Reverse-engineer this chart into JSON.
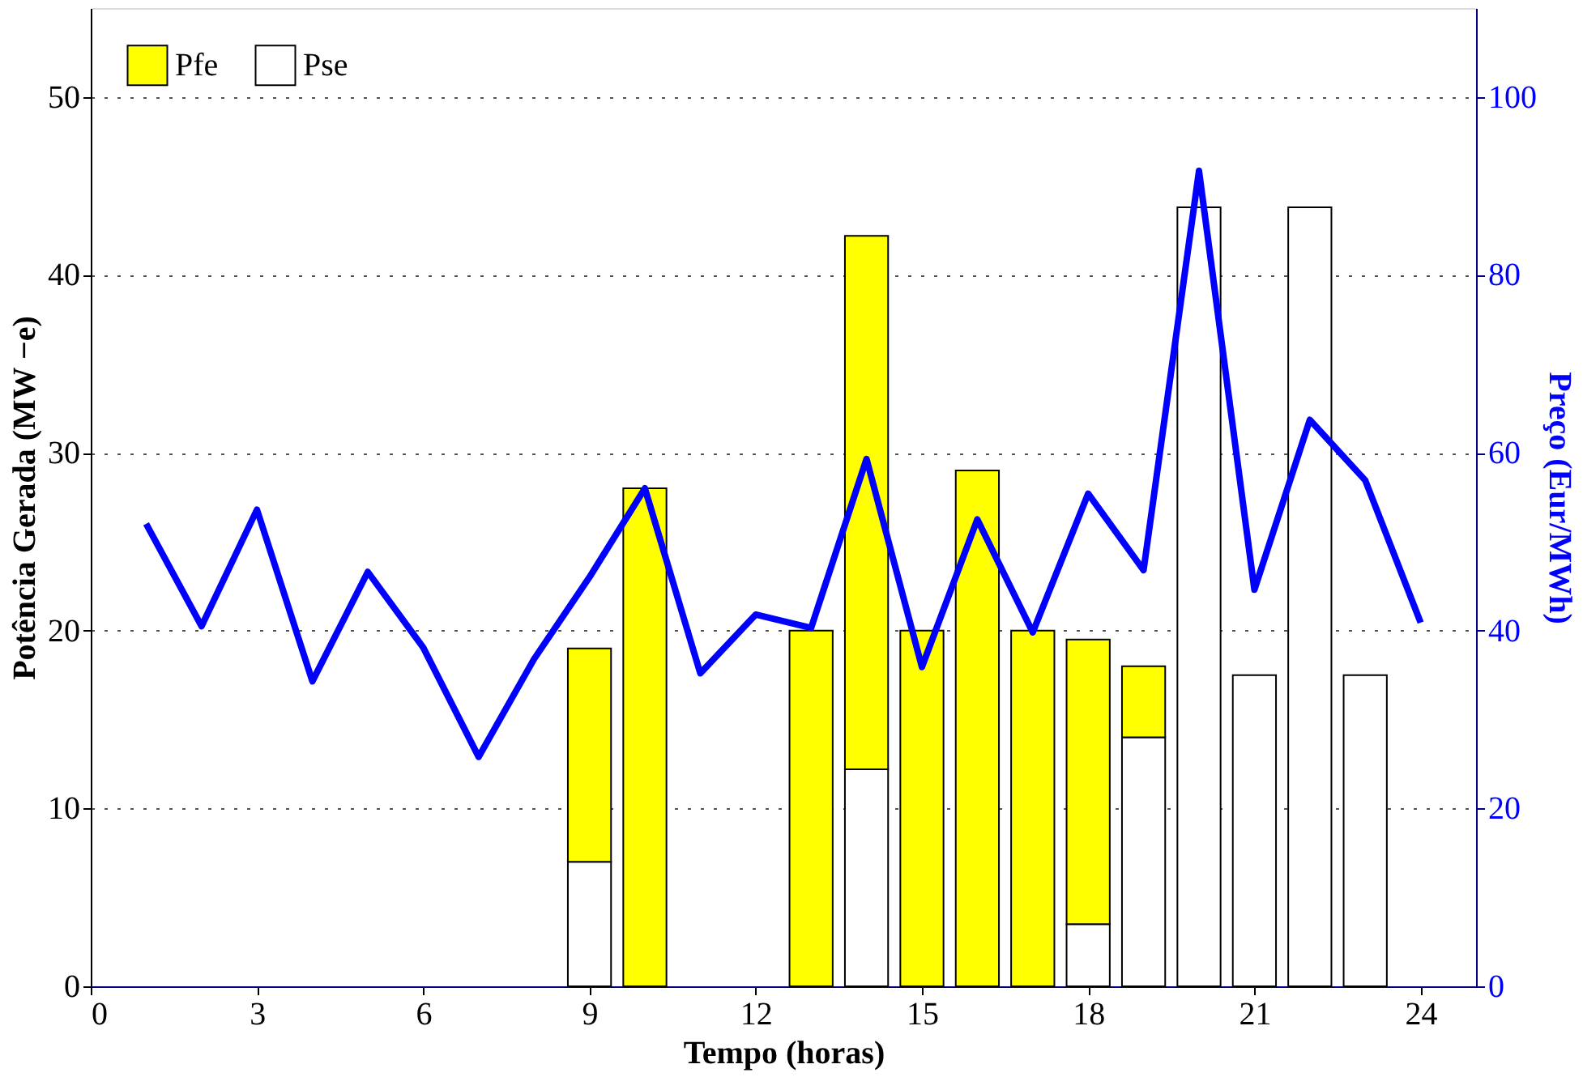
{
  "chart_data": {
    "type": "bar",
    "xlabel": "Tempo (horas)",
    "ylabel": "Potência Gerada (MW −e)",
    "y2label": "Preço (Eur/MWh)",
    "x": [
      1,
      2,
      3,
      4,
      5,
      6,
      7,
      8,
      9,
      10,
      11,
      12,
      13,
      14,
      15,
      16,
      17,
      18,
      19,
      20,
      21,
      22,
      23,
      24
    ],
    "stacked": true,
    "series": [
      {
        "name": "Pse",
        "color": "#ffffff",
        "values": [
          null,
          null,
          null,
          null,
          null,
          null,
          null,
          null,
          7,
          null,
          null,
          null,
          null,
          12.2,
          null,
          null,
          null,
          3.5,
          14,
          43.8,
          17.5,
          43.8,
          17.5,
          null
        ]
      },
      {
        "name": "Pfe",
        "color": "#ffff00",
        "values": [
          null,
          null,
          null,
          null,
          null,
          null,
          null,
          null,
          12,
          28,
          null,
          null,
          20,
          30,
          20,
          29,
          20,
          16,
          4,
          null,
          null,
          null,
          null,
          null
        ]
      },
      {
        "type": "line",
        "axis": "y2",
        "color": "#0000ff",
        "values": [
          52,
          40.5,
          53.6,
          34.3,
          46.6,
          38.1,
          25.8,
          36.8,
          46,
          56,
          35.2,
          41.8,
          40.3,
          59.3,
          35.9,
          52.5,
          39.8,
          55.4,
          46.8,
          91.7,
          44.6,
          63.7,
          56.9,
          40.9
        ]
      }
    ],
    "xlim": [
      0,
      25
    ],
    "xticks": [
      0,
      3,
      6,
      9,
      12,
      15,
      18,
      21,
      24
    ],
    "ylim": [
      0,
      55
    ],
    "yticks": [
      0,
      10,
      20,
      30,
      40,
      50
    ],
    "y2lim": [
      0,
      110
    ],
    "y2ticks": [
      0,
      20,
      40,
      60,
      80,
      100
    ],
    "grid": "y",
    "legend": "top left",
    "line_style": "solid",
    "marker": "none"
  }
}
